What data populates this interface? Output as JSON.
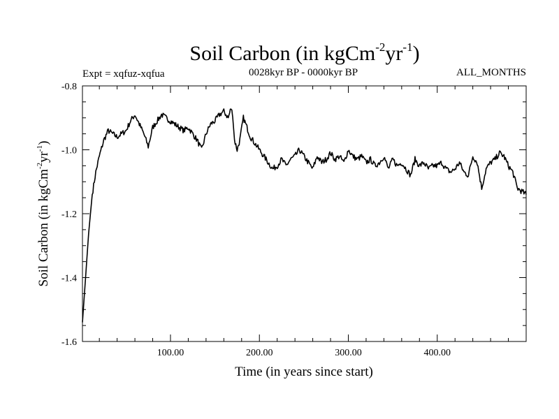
{
  "chart_data": {
    "type": "line",
    "title": {
      "main": "Soil Carbon (in kgCm",
      "sup1": "-2",
      "mid": "yr",
      "sup2": "-1",
      "end": ")"
    },
    "subtitle_left": "Expt = xqfuz-xqfua",
    "subtitle_center": "0028kyr BP - 0000kyr BP",
    "subtitle_right": "ALL_MONTHS",
    "xlabel": "Time (in years since start)",
    "ylabel": {
      "main": "Soil Carbon (in kgCm",
      "sup1": "-2",
      "mid": "yr",
      "sup2": "-1",
      "end": ")"
    },
    "xlim": [
      1,
      500
    ],
    "ylim": [
      -1.6,
      -0.8
    ],
    "x_ticks": [
      {
        "value": 100,
        "label": "100.00"
      },
      {
        "value": 200,
        "label": "200.00"
      },
      {
        "value": 300,
        "label": "300.00"
      },
      {
        "value": 400,
        "label": "400.00"
      }
    ],
    "y_ticks": [
      {
        "value": -0.8,
        "label": "-0.8"
      },
      {
        "value": -1.0,
        "label": "-1.0"
      },
      {
        "value": -1.2,
        "label": "-1.2"
      },
      {
        "value": -1.4,
        "label": "-1.4"
      },
      {
        "value": -1.6,
        "label": "-1.6"
      }
    ],
    "series": [
      {
        "name": "Soil Carbon",
        "x": [
          1,
          4,
          8,
          12,
          16,
          20,
          25,
          30,
          35,
          40,
          45,
          50,
          55,
          60,
          65,
          70,
          75,
          80,
          85,
          90,
          95,
          100,
          105,
          110,
          115,
          120,
          125,
          130,
          135,
          140,
          145,
          150,
          155,
          160,
          165,
          168,
          170,
          172,
          175,
          178,
          182,
          186,
          190,
          195,
          200,
          205,
          210,
          215,
          220,
          225,
          230,
          235,
          240,
          245,
          250,
          255,
          260,
          265,
          270,
          275,
          280,
          285,
          290,
          295,
          300,
          305,
          310,
          315,
          320,
          325,
          330,
          335,
          340,
          345,
          350,
          355,
          360,
          365,
          370,
          375,
          380,
          385,
          390,
          395,
          400,
          405,
          410,
          415,
          420,
          425,
          430,
          435,
          440,
          445,
          450,
          455,
          460,
          465,
          470,
          475,
          480,
          485,
          490,
          495,
          500
        ],
        "y": [
          -1.54,
          -1.42,
          -1.26,
          -1.14,
          -1.07,
          -1.02,
          -0.97,
          -0.94,
          -0.95,
          -0.96,
          -0.95,
          -0.94,
          -0.91,
          -0.89,
          -0.92,
          -0.95,
          -0.99,
          -0.93,
          -0.91,
          -0.89,
          -0.9,
          -0.91,
          -0.92,
          -0.93,
          -0.94,
          -0.93,
          -0.95,
          -0.97,
          -1.0,
          -0.95,
          -0.92,
          -0.91,
          -0.89,
          -0.88,
          -0.9,
          -0.87,
          -0.89,
          -0.97,
          -1.0,
          -0.97,
          -0.9,
          -0.93,
          -0.96,
          -0.98,
          -1.0,
          -1.02,
          -1.04,
          -1.06,
          -1.05,
          -1.03,
          -1.05,
          -1.03,
          -1.02,
          -1.0,
          -1.02,
          -1.04,
          -1.06,
          -1.02,
          -1.04,
          -1.03,
          -1.01,
          -1.03,
          -1.02,
          -1.04,
          -1.0,
          -1.02,
          -1.03,
          -1.02,
          -1.04,
          -1.03,
          -1.05,
          -1.04,
          -1.02,
          -1.06,
          -1.03,
          -1.05,
          -1.04,
          -1.06,
          -1.08,
          -1.03,
          -1.05,
          -1.04,
          -1.06,
          -1.05,
          -1.05,
          -1.04,
          -1.06,
          -1.07,
          -1.06,
          -1.04,
          -1.07,
          -1.08,
          -1.02,
          -1.04,
          -1.12,
          -1.06,
          -1.04,
          -1.03,
          -1.01,
          -1.02,
          -1.05,
          -1.07,
          -1.12,
          -1.13,
          -1.14
        ]
      }
    ]
  }
}
